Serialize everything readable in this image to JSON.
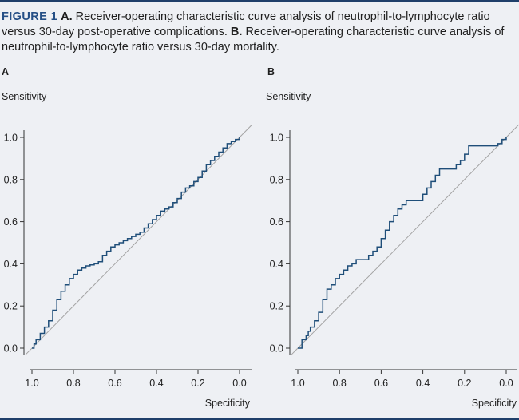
{
  "caption": {
    "figure_label": "FIGURE 1",
    "a_label": "A.",
    "a_text": "Receiver-operating characteristic curve analysis of neutrophil-to-lymphocyte ratio versus 30-day post-operative complications.",
    "b_label": "B.",
    "b_text": "Receiver-operating characteristic curve analysis of neutrophil-to-lymphocyte ratio versus 30-day mortality."
  },
  "colors": {
    "background": "#eef0f4",
    "curve": "#1f4e79",
    "reference_line": "#a3a3a3",
    "figure_label": "#254f86",
    "rule": "#1f3f6a"
  },
  "chart_data": [
    {
      "type": "line",
      "panel": "A",
      "title": "",
      "ylabel": "Sensitivity",
      "xlabel": "Specificity",
      "xlim": [
        1.0,
        0.0
      ],
      "ylim": [
        0.0,
        1.0
      ],
      "x_ticks": [
        "1.0",
        "0.8",
        "0.6",
        "0.4",
        "0.2",
        "0.0"
      ],
      "y_ticks": [
        "0.0",
        "0.2",
        "0.4",
        "0.6",
        "0.8",
        "1.0"
      ],
      "grid": false,
      "reference_line": true,
      "series": [
        {
          "specificity": [
            1.0,
            0.99,
            0.98,
            0.96,
            0.94,
            0.92,
            0.9,
            0.88,
            0.86,
            0.84,
            0.82,
            0.8,
            0.78,
            0.76,
            0.74,
            0.72,
            0.7,
            0.68,
            0.66,
            0.64,
            0.62,
            0.6,
            0.58,
            0.56,
            0.54,
            0.52,
            0.5,
            0.48,
            0.46,
            0.44,
            0.42,
            0.4,
            0.38,
            0.36,
            0.34,
            0.32,
            0.3,
            0.28,
            0.26,
            0.24,
            0.22,
            0.2,
            0.18,
            0.16,
            0.14,
            0.12,
            0.1,
            0.08,
            0.06,
            0.04,
            0.02,
            0.0
          ],
          "sensitivity": [
            0.0,
            0.02,
            0.04,
            0.07,
            0.1,
            0.13,
            0.18,
            0.23,
            0.27,
            0.3,
            0.33,
            0.35,
            0.37,
            0.38,
            0.39,
            0.395,
            0.4,
            0.41,
            0.44,
            0.46,
            0.48,
            0.49,
            0.5,
            0.51,
            0.52,
            0.53,
            0.54,
            0.55,
            0.57,
            0.59,
            0.61,
            0.63,
            0.65,
            0.66,
            0.67,
            0.69,
            0.71,
            0.74,
            0.76,
            0.77,
            0.79,
            0.81,
            0.84,
            0.87,
            0.89,
            0.91,
            0.93,
            0.95,
            0.97,
            0.98,
            0.99,
            1.0
          ]
        }
      ]
    },
    {
      "type": "line",
      "panel": "B",
      "title": "",
      "ylabel": "Sensitivity",
      "xlabel": "Specificity",
      "xlim": [
        1.0,
        0.0
      ],
      "ylim": [
        0.0,
        1.0
      ],
      "x_ticks": [
        "1.0",
        "0.8",
        "0.6",
        "0.4",
        "0.2",
        "0.0"
      ],
      "y_ticks": [
        "0.0",
        "0.2",
        "0.4",
        "0.6",
        "0.8",
        "1.0"
      ],
      "grid": false,
      "reference_line": true,
      "series": [
        {
          "specificity": [
            1.0,
            0.99,
            0.98,
            0.96,
            0.95,
            0.94,
            0.92,
            0.9,
            0.88,
            0.86,
            0.84,
            0.82,
            0.8,
            0.78,
            0.76,
            0.74,
            0.72,
            0.7,
            0.68,
            0.66,
            0.64,
            0.62,
            0.6,
            0.58,
            0.56,
            0.54,
            0.52,
            0.5,
            0.48,
            0.46,
            0.44,
            0.42,
            0.4,
            0.38,
            0.36,
            0.34,
            0.32,
            0.3,
            0.28,
            0.26,
            0.24,
            0.22,
            0.2,
            0.18,
            0.16,
            0.14,
            0.12,
            0.1,
            0.08,
            0.06,
            0.04,
            0.02,
            0.0
          ],
          "sensitivity": [
            0.0,
            0.0,
            0.04,
            0.06,
            0.08,
            0.1,
            0.13,
            0.17,
            0.23,
            0.28,
            0.3,
            0.33,
            0.35,
            0.37,
            0.39,
            0.4,
            0.42,
            0.42,
            0.42,
            0.44,
            0.46,
            0.48,
            0.52,
            0.56,
            0.6,
            0.63,
            0.66,
            0.68,
            0.7,
            0.7,
            0.7,
            0.7,
            0.73,
            0.76,
            0.79,
            0.82,
            0.85,
            0.85,
            0.85,
            0.85,
            0.87,
            0.89,
            0.92,
            0.96,
            0.96,
            0.96,
            0.96,
            0.96,
            0.96,
            0.96,
            0.97,
            0.99,
            1.0
          ]
        }
      ]
    }
  ]
}
